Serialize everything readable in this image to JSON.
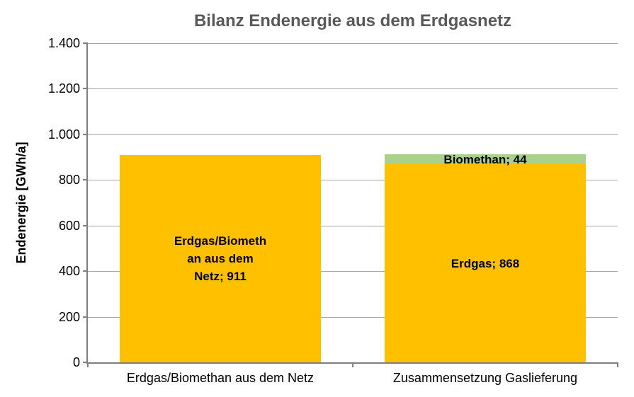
{
  "chart_data": {
    "type": "bar",
    "stacked": true,
    "title": "Bilanz Endenergie aus dem Erdgasnetz",
    "xlabel": "",
    "ylabel": "Endenergie [GWh/a]",
    "ylim": [
      0,
      1400
    ],
    "ytick_values": [
      0,
      200,
      400,
      600,
      800,
      1000,
      1200,
      1400
    ],
    "ytick_labels": [
      "0",
      "200",
      "400",
      "600",
      "800",
      "1.000",
      "1.200",
      "1.400"
    ],
    "grid": "horizontal",
    "legend": "none",
    "categories": [
      "Erdgas/Biomethan aus dem Netz",
      "Zusammensetzung Gaslieferung"
    ],
    "bars": [
      {
        "category": "Erdgas/Biomethan aus dem Netz",
        "segments": [
          {
            "name": "Erdgas/Biomethan aus dem Netz",
            "value": 911,
            "color": "#FFC000",
            "label_lines": [
              "Erdgas/Biometh",
              "an aus dem",
              "Netz; 911"
            ]
          }
        ]
      },
      {
        "category": "Zusammensetzung Gaslieferung",
        "segments": [
          {
            "name": "Erdgas",
            "value": 868,
            "color": "#FFC000",
            "label_lines": [
              "Erdgas; 868"
            ]
          },
          {
            "name": "Biomethan",
            "value": 44,
            "color": "#A9D08E",
            "label_lines": [
              "Biomethan; 44"
            ]
          }
        ]
      }
    ],
    "colors": {
      "erdgas": "#FFC000",
      "biomethan": "#A9D08E",
      "title_text": "#595959",
      "axis": "#808080",
      "gridline": "#A6A6A6"
    }
  }
}
